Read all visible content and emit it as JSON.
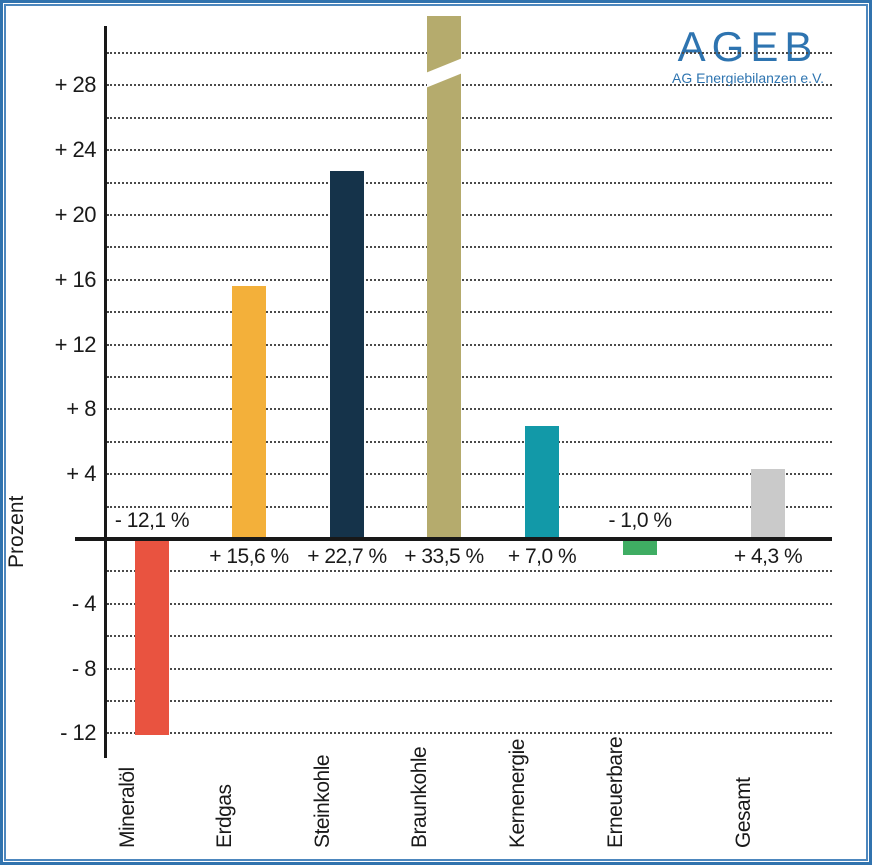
{
  "brand": {
    "name": "AGEB",
    "subtitle": "AG Energiebilanzen e.V.",
    "color": "#2E74B0"
  },
  "chart_data": {
    "type": "bar",
    "ylabel": "Prozent",
    "categories": [
      "Mineralöl",
      "Erdgas",
      "Steinkohle",
      "Braunkohle",
      "Kernenergie",
      "Erneuerbare",
      "Gesamt"
    ],
    "values": [
      -12.1,
      15.6,
      22.7,
      33.5,
      7.0,
      -1.0,
      4.3
    ],
    "value_labels": [
      "- 12,1 %",
      "+ 15,6 %",
      "+ 22,7 %",
      "+ 33,5 %",
      "+ 7,0 %",
      "- 1,0 %",
      "+ 4,3 %"
    ],
    "bar_colors": [
      "#E95340",
      "#F3B03A",
      "#15334A",
      "#B5AB6D",
      "#1299A8",
      "#3FAD63",
      "#CACACA"
    ],
    "yticks": [
      {
        "label": "+ 28",
        "value": 28
      },
      {
        "label": "+ 24",
        "value": 24
      },
      {
        "label": "+ 20",
        "value": 20
      },
      {
        "label": "+ 16",
        "value": 16
      },
      {
        "label": "+ 12",
        "value": 12
      },
      {
        "label": "+ 8",
        "value": 8
      },
      {
        "label": "+ 4",
        "value": 4
      },
      {
        "label": "- 4",
        "value": -4
      },
      {
        "label": "- 8",
        "value": -8
      },
      {
        "label": "- 12",
        "value": -12
      }
    ],
    "ylim": [
      -13.5,
      31.7
    ],
    "grid": {
      "min": -12,
      "max": 30,
      "step": 2,
      "style": "dotted"
    },
    "axis_break": {
      "category_index": 3,
      "note": "Braunkohle bar exceeds axis, drawn with diagonal break"
    },
    "legend": null
  }
}
